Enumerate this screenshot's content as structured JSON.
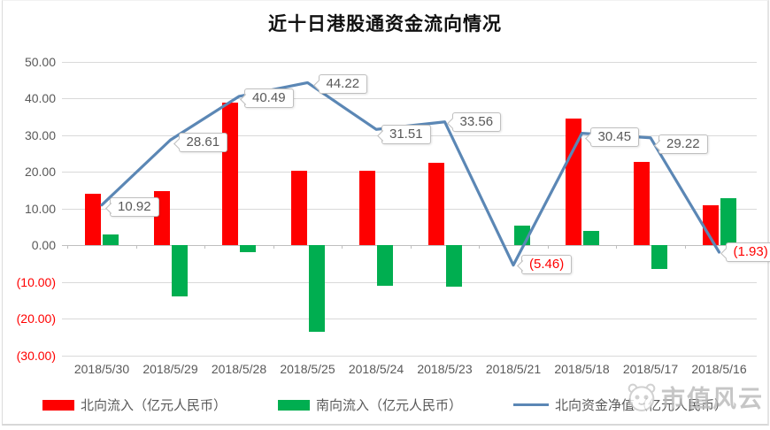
{
  "page": {
    "watermark_text": "市值风云"
  },
  "colors": {
    "northbound_bar": "#FE0000",
    "southbound_bar": "#00AE50",
    "net_line": "#5B87B5",
    "negative_label": "#FF0000",
    "axis_text": "#595959",
    "gridline": "#D9D9D9",
    "zero_line": "#BFBFBF"
  },
  "chart_data": {
    "type": "combo (bar + line)",
    "title": "近十日港股通资金流向情况",
    "categories": [
      "2018/5/30",
      "2018/5/29",
      "2018/5/28",
      "2018/5/25",
      "2018/5/24",
      "2018/5/23",
      "2018/5/21",
      "2018/5/18",
      "2018/5/17",
      "2018/5/16"
    ],
    "series": [
      {
        "name": "北向流入（亿元人民币）",
        "type": "bar",
        "color": "#FE0000",
        "values": [
          14.0,
          14.7,
          38.7,
          20.3,
          20.3,
          22.3,
          0,
          34.5,
          22.7,
          10.8
        ]
      },
      {
        "name": "南向流入（亿元人民币）",
        "type": "bar",
        "color": "#00AE50",
        "values": [
          3.0,
          -14.0,
          -1.9,
          -23.5,
          -11.1,
          -11.3,
          5.3,
          3.8,
          -6.4,
          12.8
        ]
      },
      {
        "name": "北向资金净值（亿元人民币）",
        "type": "line",
        "color": "#5B87B5",
        "values": [
          10.92,
          28.61,
          40.49,
          44.22,
          31.51,
          33.56,
          -5.46,
          30.45,
          29.22,
          -1.93
        ],
        "point_labels": [
          "10.92",
          "28.61",
          "40.49",
          "44.22",
          "31.51",
          "33.56",
          "(5.46)",
          "30.45",
          "29.22",
          "(1.93)"
        ]
      }
    ],
    "y_axis": {
      "ticks": [
        {
          "label": "50.00",
          "value": 50
        },
        {
          "label": "40.00",
          "value": 40
        },
        {
          "label": "30.00",
          "value": 30
        },
        {
          "label": "20.00",
          "value": 20
        },
        {
          "label": "10.00",
          "value": 10
        },
        {
          "label": "0.00",
          "value": 0
        },
        {
          "label": "(10.00)",
          "value": -10
        },
        {
          "label": "(20.00)",
          "value": -20
        },
        {
          "label": "(30.00)",
          "value": -30
        }
      ]
    },
    "ylim": [
      -30,
      50
    ],
    "grid": "horizontal",
    "legend_position": "bottom"
  }
}
